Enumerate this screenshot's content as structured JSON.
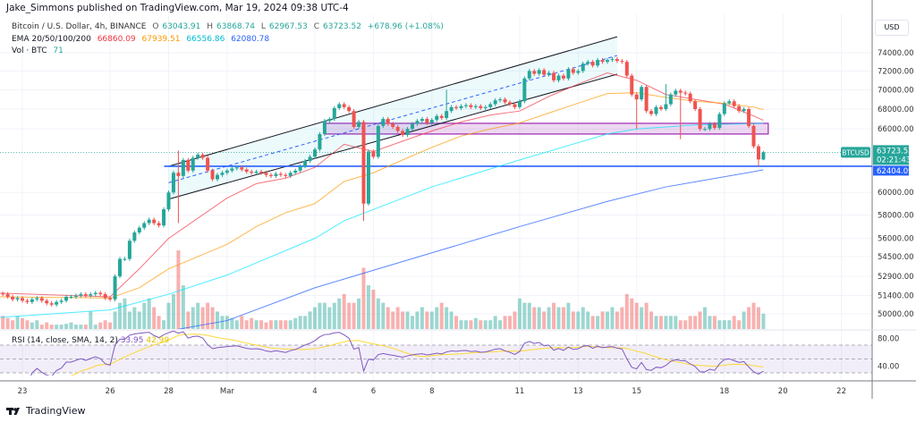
{
  "publisher": "Jake_Simmons published on TradingView.com, Mar 19, 2024 09:38 UTC-4",
  "legend": {
    "symbol": "Bitcoin / U.S. Dollar, 4h, BINANCE",
    "open_label": "O",
    "open": "63043.91",
    "high_label": "H",
    "high": "63868.74",
    "low_label": "L",
    "low": "62967.53",
    "close_label": "C",
    "close": "63723.52",
    "change": "+678.96 (+1.08%)",
    "ema_label": "EMA 20/50/100/200",
    "ema20": "66860.09",
    "ema50": "67939.51",
    "ema100": "66556.86",
    "ema200": "62080.78",
    "vol_label": "Vol · BTC",
    "vol": "71"
  },
  "rsi_legend": {
    "label": "RSI (14, close, SMA, 14, 2)",
    "rsi": "33.95",
    "sma": "42.99"
  },
  "price_axis": {
    "currency": "USD",
    "ticks": [
      "74000.00",
      "72000.00",
      "70000.00",
      "68000.00",
      "66000.00",
      "60000.00",
      "58000.00",
      "56000.00",
      "54500.00",
      "52900.00",
      "51400.00",
      "50000.00"
    ],
    "symbol_tag": "BTCUSD",
    "last_price": "63723.52",
    "countdown": "02:21:43",
    "line_price": "62404.09"
  },
  "rsi_axis": {
    "ticks": [
      "80.00",
      "40.00"
    ]
  },
  "time_axis": {
    "labels": [
      {
        "text": "23",
        "date": "Feb 23"
      },
      {
        "text": "26",
        "date": "Feb 26"
      },
      {
        "text": "28",
        "date": "Feb 28"
      },
      {
        "text": "Mar",
        "date": "Mar 1"
      },
      {
        "text": "4",
        "date": "Mar 4"
      },
      {
        "text": "6",
        "date": "Mar 6"
      },
      {
        "text": "8",
        "date": "Mar 8"
      },
      {
        "text": "11",
        "date": "Mar 11"
      },
      {
        "text": "13",
        "date": "Mar 13"
      },
      {
        "text": "15",
        "date": "Mar 15"
      },
      {
        "text": "18",
        "date": "Mar 18"
      },
      {
        "text": "20",
        "date": "Mar 20"
      },
      {
        "text": "22",
        "date": "Mar 22"
      }
    ]
  },
  "footer": {
    "brand": "TradingView"
  },
  "colors": {
    "up": "#26a69a",
    "down": "#ef5350",
    "ema20": "#f23645",
    "ema50": "#ff9800",
    "ema100": "#00e5ff",
    "ema200": "#2962ff",
    "hline": "#2962ff",
    "zone": "#9c27b0",
    "channel": "#131722",
    "rsi": "#7e57c2",
    "rsi_sma": "#fdd835"
  },
  "chart_data": {
    "type": "candlestick",
    "timeframe": "4h",
    "first_candle": "Feb 22 08:00",
    "y_scale": "log",
    "ylim": [
      48500,
      76000
    ],
    "closes": [
      51500,
      51300,
      51100,
      51200,
      51000,
      50900,
      51100,
      51200,
      51000,
      50800,
      50700,
      50900,
      51000,
      51300,
      51300,
      51400,
      51500,
      51400,
      51500,
      51600,
      51500,
      51200,
      51100,
      52900,
      54300,
      54300,
      55800,
      56500,
      56900,
      57300,
      57600,
      57300,
      57100,
      58500,
      60000,
      61800,
      61500,
      63000,
      62000,
      63200,
      63500,
      63200,
      62000,
      61200,
      61600,
      61800,
      62000,
      62200,
      62300,
      62100,
      61900,
      61800,
      61900,
      61800,
      61600,
      61500,
      61700,
      61600,
      61500,
      61800,
      62000,
      62400,
      62900,
      63300,
      64000,
      65500,
      66800,
      67000,
      68100,
      68500,
      68200,
      67800,
      66200,
      66700,
      59000,
      63800,
      63300,
      66300,
      67000,
      66500,
      66200,
      65800,
      65400,
      66000,
      66500,
      66800,
      67000,
      66600,
      66900,
      67300,
      67100,
      67800,
      68200,
      68100,
      68300,
      68400,
      68200,
      68300,
      68100,
      68200,
      68500,
      68900,
      69000,
      68700,
      68500,
      68200,
      68800,
      71200,
      72000,
      71700,
      72100,
      71600,
      71800,
      71000,
      71500,
      71200,
      72200,
      71800,
      72000,
      72800,
      73000,
      72600,
      73200,
      73000,
      73200,
      73300,
      73100,
      73000,
      71500,
      69500,
      69000,
      70300,
      67800,
      67500,
      68200,
      68000,
      68500,
      69500,
      69900,
      69700,
      69600,
      68800,
      68000,
      66000,
      66000,
      66500,
      66100,
      67500,
      68600,
      68800,
      68300,
      67800,
      68000,
      66300,
      64300,
      63043.91,
      63723.52
    ],
    "wick_overrides": [
      {
        "index": 36,
        "high": 63900,
        "low": 57300
      },
      {
        "index": 74,
        "low": 57500
      },
      {
        "index": 91,
        "high": 70000
      },
      {
        "index": 130,
        "low": 66000
      },
      {
        "index": 136,
        "high": 70600
      },
      {
        "index": 139,
        "low": 65000
      },
      {
        "index": 155,
        "low": 62400
      },
      {
        "index": 156,
        "open": 63043.91,
        "high": 63868.74,
        "low": 62967.53
      }
    ],
    "volume": [
      3,
      2.5,
      2,
      3,
      2.5,
      2,
      1.5,
      2,
      1,
      1.5,
      1,
      1,
      1,
      1.2,
      1.5,
      1,
      1,
      1,
      4,
      1,
      1.5,
      2,
      1.5,
      4,
      6,
      7,
      4,
      5,
      4,
      6,
      7,
      5,
      3,
      2,
      6,
      8,
      18,
      10,
      4,
      5,
      6,
      5,
      6,
      5,
      4,
      3,
      3,
      2.5,
      2,
      3,
      2,
      2.5,
      2,
      2,
      1.5,
      2,
      2,
      2,
      2,
      2,
      2.5,
      3,
      3,
      4,
      5,
      6,
      6,
      5,
      6,
      7,
      8,
      6,
      6,
      7,
      14,
      10,
      9,
      7,
      6,
      5,
      4,
      5,
      4,
      4,
      3,
      4,
      5,
      4,
      4,
      5,
      6,
      5,
      4,
      3,
      2,
      2,
      2,
      2.5,
      2,
      2,
      2,
      3,
      2,
      3,
      3,
      4,
      7,
      6,
      6,
      5,
      5,
      4,
      5,
      6,
      5,
      5,
      6,
      4,
      4,
      5,
      4,
      3,
      3,
      4,
      4,
      5,
      4,
      5,
      8,
      7,
      6,
      5,
      6,
      4,
      3,
      3,
      3,
      3,
      3,
      2,
      2,
      3,
      3,
      4,
      5,
      3,
      3,
      2,
      2,
      2,
      3,
      2,
      4,
      5,
      6,
      5,
      3.5
    ],
    "ema": {
      "ema20": [
        [
          "Feb 22",
          51600
        ],
        [
          "Feb 26",
          51300
        ],
        [
          "Feb 27",
          53500
        ],
        [
          "Feb 28",
          56000
        ],
        [
          "Mar 1",
          59500
        ],
        [
          "Mar 2",
          60800
        ],
        [
          "Mar 3",
          61300
        ],
        [
          "Mar 4",
          62300
        ],
        [
          "Mar 5",
          64500
        ],
        [
          "Mar 6",
          63800
        ],
        [
          "Mar 7",
          64800
        ],
        [
          "Mar 8",
          65800
        ],
        [
          "Mar 9",
          66700
        ],
        [
          "Mar 10",
          67400
        ],
        [
          "Mar 11",
          67800
        ],
        [
          "Mar 12",
          69300
        ],
        [
          "Mar 13",
          70600
        ],
        [
          "Mar 14",
          71800
        ],
        [
          "Mar 15",
          71000
        ],
        [
          "Mar 16",
          69500
        ],
        [
          "Mar 17",
          69000
        ],
        [
          "Mar 18",
          68500
        ],
        [
          "Mar 19",
          67300
        ]
      ],
      "ema50": [
        [
          "Feb 22",
          51300
        ],
        [
          "Feb 26",
          51200
        ],
        [
          "Feb 27",
          52000
        ],
        [
          "Feb 28",
          53500
        ],
        [
          "Mar 1",
          55500
        ],
        [
          "Mar 2",
          57000
        ],
        [
          "Mar 3",
          58200
        ],
        [
          "Mar 4",
          59000
        ],
        [
          "Mar 5",
          61000
        ],
        [
          "Mar 6",
          61800
        ],
        [
          "Mar 7",
          63000
        ],
        [
          "Mar 8",
          64200
        ],
        [
          "Mar 9",
          65300
        ],
        [
          "Mar 10",
          66000
        ],
        [
          "Mar 11",
          66600
        ],
        [
          "Mar 12",
          67600
        ],
        [
          "Mar 13",
          68600
        ],
        [
          "Mar 14",
          69600
        ],
        [
          "Mar 15",
          69700
        ],
        [
          "Mar 16",
          69200
        ],
        [
          "Mar 17",
          68800
        ],
        [
          "Mar 18",
          68600
        ],
        [
          "Mar 19",
          68200
        ]
      ],
      "ema100": [
        [
          "Feb 22",
          49700
        ],
        [
          "Feb 26",
          50300
        ],
        [
          "Feb 28",
          51500
        ],
        [
          "Mar 1",
          53000
        ],
        [
          "Mar 4",
          56000
        ],
        [
          "Mar 5",
          57500
        ],
        [
          "Mar 8",
          60500
        ],
        [
          "Mar 11",
          63000
        ],
        [
          "Mar 14",
          65500
        ],
        [
          "Mar 15",
          66000
        ],
        [
          "Mar 17",
          66400
        ]
      ],
      "ema200": [
        [
          "Feb 22",
          46500
        ],
        [
          "Mar 1",
          49500
        ],
        [
          "Mar 4",
          52000
        ],
        [
          "Mar 8",
          54800
        ],
        [
          "Mar 11",
          57000
        ],
        [
          "Mar 14",
          59200
        ],
        [
          "Mar 16",
          60500
        ],
        [
          "Mar 19",
          61900
        ]
      ]
    },
    "drawings": {
      "channel": {
        "start": "Feb 28",
        "end": "Mar 14 08:00",
        "upper": [
          62400,
          75800
        ],
        "lower": [
          59400,
          71650
        ]
      },
      "horizontal_line": {
        "start": "Feb 28",
        "price": 62404.09
      },
      "zone": {
        "start": "Mar 4 08:00",
        "end": "Mar 19 12:00",
        "top": 66560,
        "bottom": 65500
      }
    },
    "rsi": {
      "period": 14,
      "sma": 14,
      "bands": [
        70,
        50,
        30
      ],
      "ylim": [
        20,
        90
      ]
    }
  }
}
